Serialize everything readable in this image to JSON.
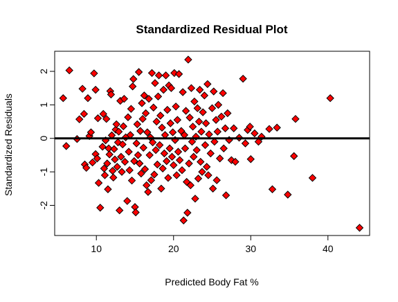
{
  "chart_data": {
    "type": "scatter",
    "title": "Standardized Residual Plot",
    "xlabel": "Predicted Body Fat %",
    "ylabel": "Standardized Residuals",
    "xlim": [
      4.6,
      45.4
    ],
    "ylim": [
      -2.9,
      2.6
    ],
    "xticks": [
      10,
      20,
      30,
      40
    ],
    "yticks": [
      -2,
      -1,
      0,
      1,
      2
    ],
    "grid": false,
    "reference_line": {
      "y": 0
    },
    "marker": "diamond",
    "marker_fill": "#ff0000",
    "marker_edge": "#000000",
    "points": [
      [
        5.7,
        1.2
      ],
      [
        6.1,
        -0.23
      ],
      [
        6.5,
        2.03
      ],
      [
        7.5,
        -0.02
      ],
      [
        7.8,
        0.57
      ],
      [
        8.2,
        1.48
      ],
      [
        8.4,
        0.73
      ],
      [
        8.5,
        -0.78
      ],
      [
        8.7,
        -0.88
      ],
      [
        8.9,
        1.2
      ],
      [
        9.1,
        0.07
      ],
      [
        9.3,
        0.18
      ],
      [
        9.5,
        -0.72
      ],
      [
        9.7,
        1.94
      ],
      [
        9.9,
        1.45
      ],
      [
        9.9,
        -0.47
      ],
      [
        10.1,
        -0.6
      ],
      [
        10.2,
        0.6
      ],
      [
        10.3,
        -1.33
      ],
      [
        10.5,
        -2.07
      ],
      [
        10.8,
        -0.25
      ],
      [
        10.9,
        0.73
      ],
      [
        11.0,
        -0.9
      ],
      [
        11.1,
        -1.1
      ],
      [
        11.2,
        -0.06
      ],
      [
        11.3,
        0.58
      ],
      [
        11.4,
        -0.75
      ],
      [
        11.5,
        -1.52
      ],
      [
        11.6,
        -0.3
      ],
      [
        11.7,
        -0.48
      ],
      [
        11.8,
        1.41
      ],
      [
        11.9,
        1.31
      ],
      [
        12.0,
        0.09
      ],
      [
        12.1,
        -0.97
      ],
      [
        12.2,
        -1.17
      ],
      [
        12.3,
        -0.32
      ],
      [
        12.4,
        -0.63
      ],
      [
        12.5,
        0.26
      ],
      [
        12.6,
        0.42
      ],
      [
        12.7,
        -0.85
      ],
      [
        12.8,
        -0.12
      ],
      [
        12.9,
        0.2
      ],
      [
        13.0,
        -2.15
      ],
      [
        13.1,
        1.12
      ],
      [
        13.2,
        -0.55
      ],
      [
        13.3,
        -1.0
      ],
      [
        13.4,
        -0.18
      ],
      [
        13.5,
        0.36
      ],
      [
        13.6,
        1.18
      ],
      [
        13.7,
        -0.7
      ],
      [
        13.8,
        0.03
      ],
      [
        14.0,
        -1.87
      ],
      [
        14.1,
        0.63
      ],
      [
        14.2,
        -0.4
      ],
      [
        14.3,
        -0.95
      ],
      [
        14.4,
        0.1
      ],
      [
        14.5,
        0.88
      ],
      [
        14.6,
        -1.26
      ],
      [
        14.7,
        1.55
      ],
      [
        14.8,
        1.77
      ],
      [
        14.9,
        -0.68
      ],
      [
        15.0,
        -2.05
      ],
      [
        15.1,
        -2.21
      ],
      [
        15.2,
        -0.15
      ],
      [
        15.3,
        0.42
      ],
      [
        15.4,
        -0.5
      ],
      [
        15.5,
        1.98
      ],
      [
        15.6,
        -0.75
      ],
      [
        15.7,
        0.22
      ],
      [
        15.8,
        -1.05
      ],
      [
        15.9,
        1.05
      ],
      [
        16.0,
        0.58
      ],
      [
        16.1,
        -0.28
      ],
      [
        16.2,
        1.28
      ],
      [
        16.3,
        -0.92
      ],
      [
        16.4,
        0.75
      ],
      [
        16.5,
        -1.4
      ],
      [
        16.6,
        0.18
      ],
      [
        16.7,
        -1.6
      ],
      [
        16.8,
        1.18
      ],
      [
        16.9,
        -0.5
      ],
      [
        17.0,
        0.03
      ],
      [
        17.1,
        -1.25
      ],
      [
        17.2,
        1.95
      ],
      [
        17.3,
        -0.12
      ],
      [
        17.4,
        0.92
      ],
      [
        17.5,
        -1.08
      ],
      [
        17.6,
        1.65
      ],
      [
        17.7,
        -0.35
      ],
      [
        17.8,
        0.5
      ],
      [
        17.9,
        -0.78
      ],
      [
        18.0,
        1.25
      ],
      [
        18.1,
        1.88
      ],
      [
        18.2,
        -0.2
      ],
      [
        18.3,
        0.68
      ],
      [
        18.4,
        -1.5
      ],
      [
        18.5,
        0.32
      ],
      [
        18.6,
        -0.9
      ],
      [
        18.7,
        1.45
      ],
      [
        18.8,
        -0.45
      ],
      [
        18.9,
        0.1
      ],
      [
        19.0,
        1.88
      ],
      [
        19.1,
        -0.68
      ],
      [
        19.2,
        0.85
      ],
      [
        19.3,
        -1.18
      ],
      [
        19.4,
        1.58
      ],
      [
        19.5,
        -0.3
      ],
      [
        19.6,
        0.45
      ],
      [
        19.7,
        1.5
      ],
      [
        19.8,
        -0.55
      ],
      [
        19.9,
        0.18
      ],
      [
        20.0,
        -0.8
      ],
      [
        20.1,
        1.95
      ],
      [
        20.2,
        -0.05
      ],
      [
        20.3,
        0.95
      ],
      [
        20.4,
        -1.1
      ],
      [
        20.5,
        0.55
      ],
      [
        20.6,
        -0.4
      ],
      [
        20.7,
        1.92
      ],
      [
        20.8,
        -0.65
      ],
      [
        21.0,
        0.22
      ],
      [
        21.1,
        -0.95
      ],
      [
        21.2,
        1.38
      ],
      [
        21.3,
        -2.45
      ],
      [
        21.4,
        0.1
      ],
      [
        21.5,
        -0.3
      ],
      [
        21.6,
        0.82
      ],
      [
        21.7,
        -1.3
      ],
      [
        21.8,
        -2.22
      ],
      [
        21.9,
        2.35
      ],
      [
        22.0,
        -0.75
      ],
      [
        22.1,
        0.62
      ],
      [
        22.2,
        -1.4
      ],
      [
        22.3,
        1.5
      ],
      [
        22.4,
        -0.1
      ],
      [
        22.5,
        0.35
      ],
      [
        22.6,
        -0.55
      ],
      [
        22.7,
        1.1
      ],
      [
        22.8,
        -1.8
      ],
      [
        22.9,
        0.05
      ],
      [
        23.0,
        -0.35
      ],
      [
        23.1,
        0.9
      ],
      [
        23.2,
        -1.2
      ],
      [
        23.3,
        0.5
      ],
      [
        23.4,
        1.45
      ],
      [
        23.5,
        -0.7
      ],
      [
        23.6,
        0.2
      ],
      [
        23.7,
        -1.0
      ],
      [
        23.8,
        0.78
      ],
      [
        24.0,
        1.28
      ],
      [
        24.1,
        -0.2
      ],
      [
        24.2,
        0.45
      ],
      [
        24.3,
        -0.85
      ],
      [
        24.4,
        1.62
      ],
      [
        24.5,
        -1.1
      ],
      [
        24.6,
        0.12
      ],
      [
        24.8,
        -0.45
      ],
      [
        25.0,
        0.9
      ],
      [
        25.1,
        -1.5
      ],
      [
        25.2,
        1.4
      ],
      [
        25.3,
        -0.1
      ],
      [
        25.5,
        0.55
      ],
      [
        25.6,
        -1.25
      ],
      [
        25.7,
        0.2
      ],
      [
        25.8,
        1.0
      ],
      [
        26.0,
        -0.6
      ],
      [
        26.2,
        0.65
      ],
      [
        26.4,
        1.35
      ],
      [
        26.5,
        -0.3
      ],
      [
        26.7,
        0.3
      ],
      [
        26.8,
        -1.7
      ],
      [
        27.0,
        0.75
      ],
      [
        27.2,
        -0.05
      ],
      [
        27.5,
        -0.65
      ],
      [
        27.8,
        0.3
      ],
      [
        28.0,
        -0.7
      ],
      [
        28.5,
        0.02
      ],
      [
        29.0,
        1.78
      ],
      [
        29.3,
        -0.15
      ],
      [
        29.6,
        0.25
      ],
      [
        29.9,
        0.35
      ],
      [
        30.0,
        -0.62
      ],
      [
        30.5,
        0.15
      ],
      [
        31.0,
        -0.1
      ],
      [
        31.4,
        0.05
      ],
      [
        32.4,
        0.28
      ],
      [
        32.8,
        -1.52
      ],
      [
        33.4,
        0.32
      ],
      [
        34.8,
        -1.68
      ],
      [
        35.6,
        -0.53
      ],
      [
        35.8,
        0.58
      ],
      [
        38.0,
        -1.18
      ],
      [
        40.3,
        1.2
      ],
      [
        44.1,
        -2.67
      ]
    ]
  }
}
